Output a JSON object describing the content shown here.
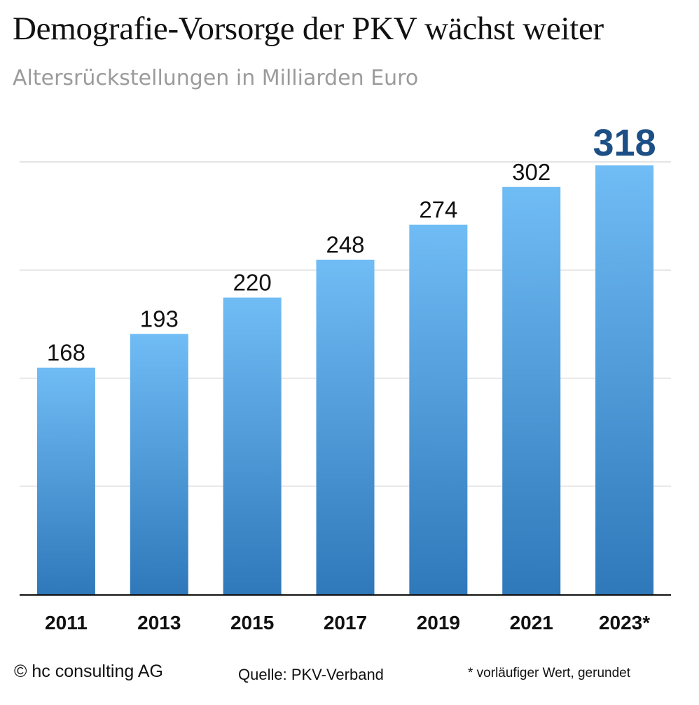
{
  "chart_data": {
    "type": "bar",
    "title": "Demografie-Vorsorge der PKV wächst weiter",
    "subtitle": "Altersrückstellungen in Milliarden Euro",
    "categories": [
      "2011",
      "2013",
      "2015",
      "2017",
      "2019",
      "2021",
      "2023*"
    ],
    "values": [
      168,
      193,
      220,
      248,
      274,
      302,
      318
    ],
    "data_labels": [
      "168",
      "193",
      "220",
      "248",
      "274",
      "302",
      "318"
    ],
    "highlight_index": 6,
    "ylim": [
      0,
      318
    ],
    "grid": true,
    "legend": "none",
    "colors": {
      "bar_top": "#70bcf5",
      "bar_bottom": "#2f78ba",
      "highlight_label": "#1c4f85",
      "grid": "#c8c8c8",
      "axis": "#111111"
    }
  },
  "footer": {
    "copyright": "© hc consulting AG",
    "source": "Quelle: PKV-Verband",
    "note": "* vorläufiger Wert, gerundet"
  }
}
